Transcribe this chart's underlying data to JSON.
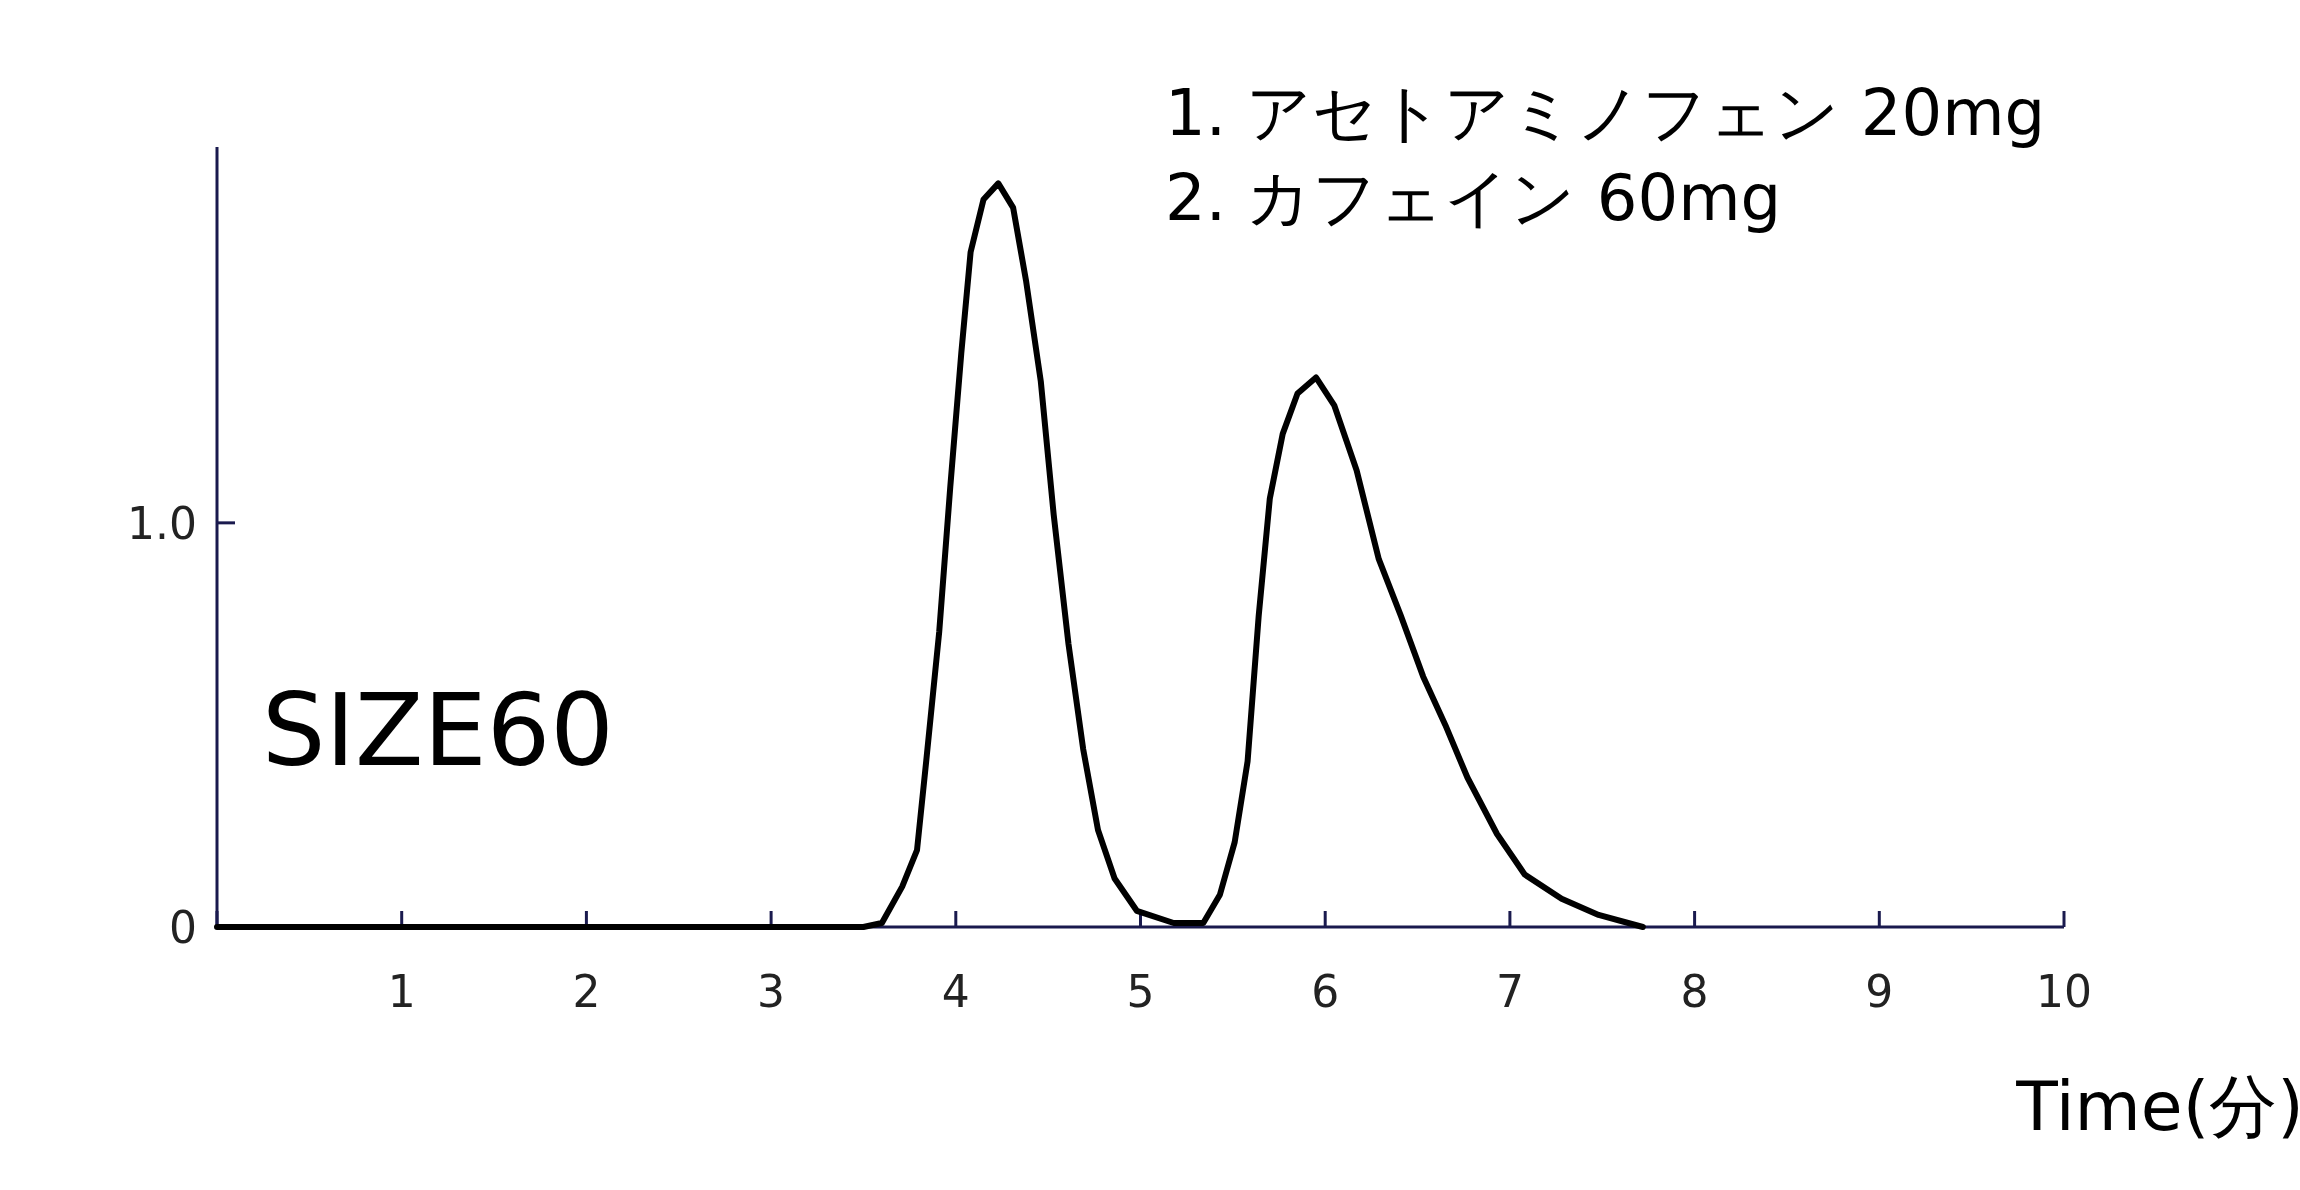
{
  "chart_data": {
    "type": "line",
    "xlabel": "Time(分)",
    "annotations": [
      "1. アセトアミノフェン 20mg",
      "2. カフェイン 60mg",
      "SIZE60"
    ],
    "xlim": [
      0,
      10
    ],
    "ylim": [
      0,
      1.93
    ],
    "xticks": [
      {
        "value": 0,
        "label": null
      },
      1,
      2,
      3,
      4,
      5,
      6,
      7,
      8,
      9,
      10
    ],
    "yticks": [
      0,
      {
        "value": 1,
        "label": "1.0"
      }
    ],
    "grid": false,
    "marker": "none",
    "line_style": "solid",
    "series": [
      {
        "color": "#000000",
        "x": [
          0,
          3.5,
          3.6,
          3.71,
          3.79,
          3.84,
          3.91,
          3.97,
          4.03,
          4.08,
          4.15,
          4.23,
          4.31,
          4.38,
          4.46,
          4.53,
          4.61,
          4.69,
          4.77,
          4.86,
          4.98,
          5.18,
          5.34,
          5.43,
          5.51,
          5.58,
          5.64,
          5.7,
          5.77,
          5.85,
          5.95,
          6.05,
          6.17,
          6.29,
          6.41,
          6.53,
          6.65,
          6.77,
          6.93,
          7.08,
          7.28,
          7.48,
          7.72
        ],
        "values": [
          0,
          0,
          0.01,
          0.1,
          0.19,
          0.41,
          0.73,
          1.09,
          1.42,
          1.67,
          1.8,
          1.84,
          1.78,
          1.6,
          1.35,
          1.02,
          0.7,
          0.44,
          0.24,
          0.12,
          0.04,
          0.01,
          0.01,
          0.08,
          0.21,
          0.41,
          0.77,
          1.06,
          1.22,
          1.32,
          1.36,
          1.29,
          1.13,
          0.91,
          0.77,
          0.62,
          0.5,
          0.37,
          0.23,
          0.13,
          0.07,
          0.03,
          0
        ]
      }
    ]
  }
}
